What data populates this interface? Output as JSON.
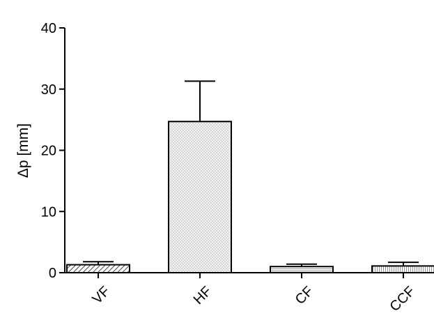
{
  "chart_data": {
    "type": "bar",
    "title": "",
    "xlabel": "",
    "ylabel": "Δp [mm]",
    "ylim": [
      0,
      40
    ],
    "yticks": [
      0,
      10,
      20,
      30,
      40
    ],
    "grid": false,
    "categories": [
      "VF",
      "HF",
      "CF",
      "CCF"
    ],
    "series": [
      {
        "values": [
          1.3,
          24.7,
          1.0,
          1.1
        ],
        "error_upper": [
          0.5,
          6.6,
          0.4,
          0.6
        ],
        "fill_patterns": [
          "diagonal-hatch",
          "dots",
          "horizontal-lines",
          "vertical-lines"
        ]
      }
    ],
    "colors": {
      "bar_fill": "#ffffff",
      "stroke": "#000000",
      "pattern": "#555555"
    }
  }
}
